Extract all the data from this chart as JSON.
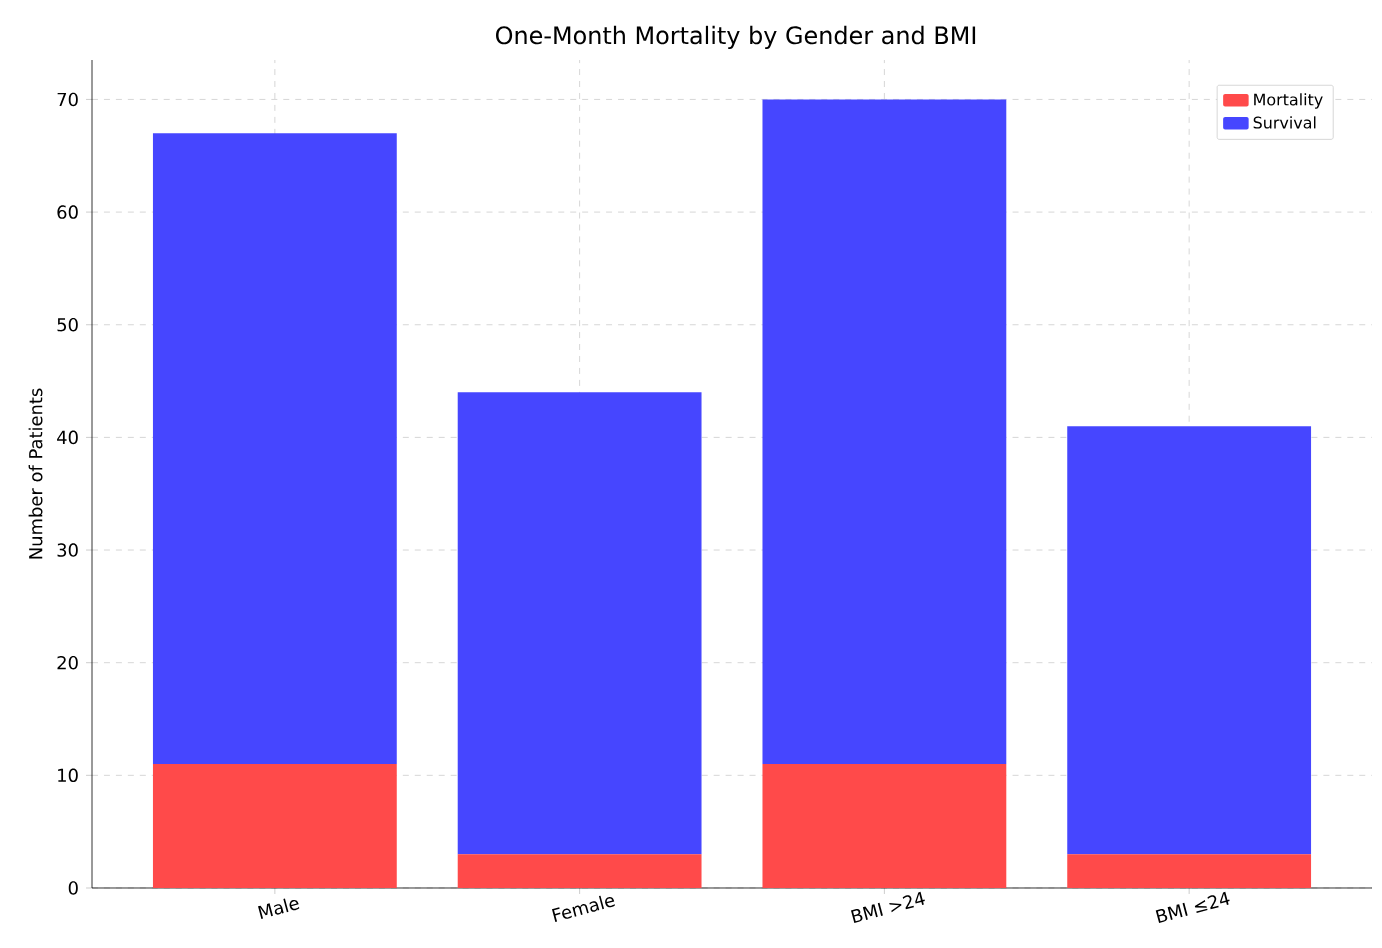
{
  "chart_data": {
    "type": "bar",
    "title": "One-Month Mortality by Gender and BMI",
    "ylabel": "Number of Patients",
    "categories": [
      "Male",
      "Female",
      "BMI >24",
      "BMI ≤24"
    ],
    "series": [
      {
        "name": "Mortality",
        "color": "#ff4a4a",
        "values": [
          11,
          3,
          11,
          3
        ]
      },
      {
        "name": "Survival",
        "color": "#4646ff",
        "values": [
          56,
          41,
          59,
          38
        ]
      }
    ],
    "stacked": true,
    "ylim": [
      0,
      73.5
    ],
    "yticks": [
      0,
      10,
      20,
      30,
      40,
      50,
      60,
      70
    ],
    "grid": true,
    "legend": "top right"
  }
}
